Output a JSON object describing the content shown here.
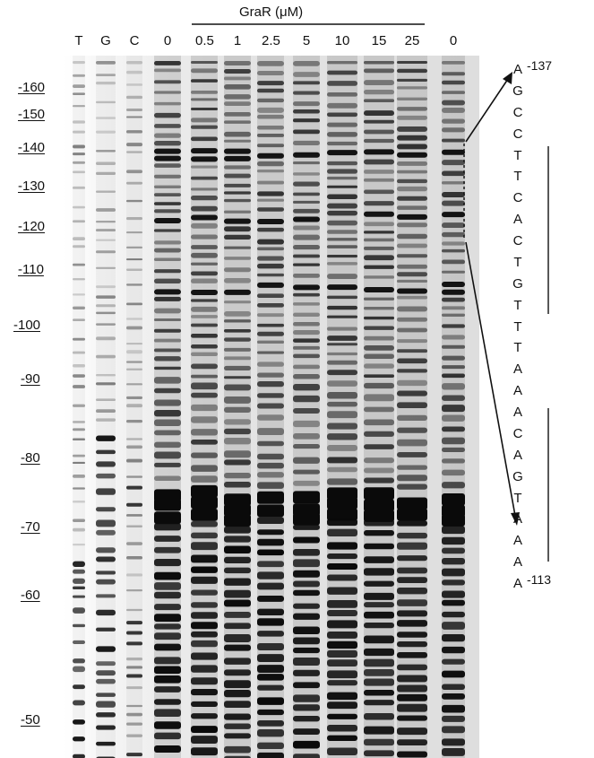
{
  "title_label": "GraR (μM)",
  "lanes": [
    "T",
    "G",
    "C",
    "0",
    "0.5",
    "1",
    "2.5",
    "5",
    "10",
    "15",
    "25",
    "0"
  ],
  "positions": [
    "-160",
    "-150",
    "-140",
    "-130",
    "-120",
    "-110",
    "-100",
    "-90",
    "-80",
    "-70",
    "-60",
    "-50"
  ],
  "sequence": [
    "A",
    "G",
    "C",
    "C",
    "T",
    "T",
    "C",
    "A",
    "C",
    "T",
    "G",
    "T",
    "T",
    "T",
    "A",
    "A",
    "A",
    "C",
    "A",
    "G",
    "T",
    "A",
    "A",
    "A",
    "A"
  ],
  "seq_start_label": "-137",
  "seq_end_label": "-113",
  "colors": {
    "background": "#ffffff",
    "ink": "#111111",
    "gel_light": "#e6e6e6",
    "band_dark": "#0a0a0a"
  }
}
